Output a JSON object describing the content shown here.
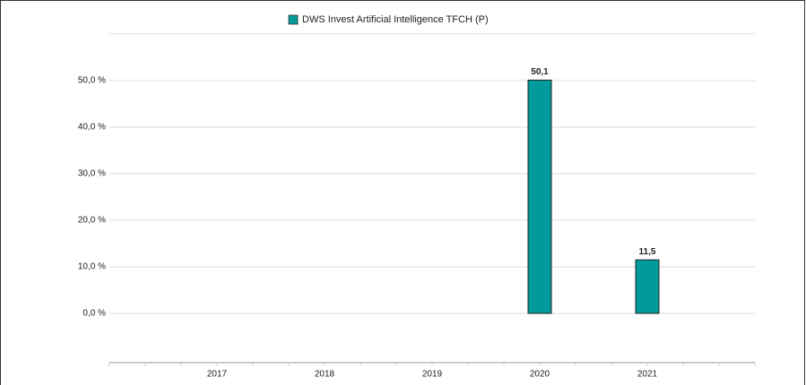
{
  "chart_data": {
    "type": "bar",
    "series": [
      {
        "name": "DWS Invest Artificial Intelligence  TFCH (P)",
        "color": "#009b9a",
        "values": [
          null,
          null,
          null,
          50.1,
          11.5
        ],
        "value_labels": [
          null,
          null,
          null,
          "50,1",
          "11,5"
        ]
      }
    ],
    "categories": [
      "2017",
      "2018",
      "2019",
      "2020",
      "2021"
    ],
    "ylim": [
      -10,
      60
    ],
    "yticks": [
      {
        "value": 0,
        "label": "0,0 %"
      },
      {
        "value": 10,
        "label": "10,0 %"
      },
      {
        "value": 20,
        "label": "20,0 %"
      },
      {
        "value": 30,
        "label": "30,0 %"
      },
      {
        "value": 40,
        "label": "40,0 %"
      },
      {
        "value": 50,
        "label": "50,0 %"
      }
    ],
    "grid": true
  }
}
